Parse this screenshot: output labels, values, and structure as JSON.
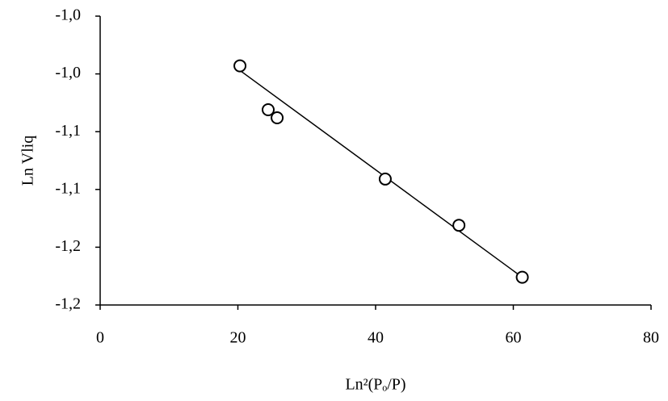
{
  "chart_data": {
    "type": "scatter",
    "xlabel": "Ln²(Pₒ/P)",
    "ylabel": "Ln Vliq",
    "xlim": [
      0,
      80
    ],
    "xticks": [
      0,
      20,
      40,
      60,
      80
    ],
    "ylim": [
      -1.2,
      -0.95
    ],
    "yticks": [
      {
        "value": -1.2,
        "label": "-1,2"
      },
      {
        "value": -1.15,
        "label": "-1,2"
      },
      {
        "value": -1.1,
        "label": "-1,1"
      },
      {
        "value": -1.05,
        "label": "-1,1"
      },
      {
        "value": -1.0,
        "label": "-1,0"
      },
      {
        "value": -0.95,
        "label": "-1,0"
      }
    ],
    "grid": false,
    "series": [
      {
        "color": "#000000",
        "x": [
          20.3,
          24.4,
          25.7,
          41.4,
          52.1,
          61.3
        ],
        "values": [
          -0.993,
          -1.031,
          -1.038,
          -1.091,
          -1.131,
          -1.176
        ]
      },
      {
        "color": "#000000",
        "x": [
          20.3,
          61.3
        ],
        "values": [
          -0.997,
          -1.176
        ]
      }
    ]
  }
}
